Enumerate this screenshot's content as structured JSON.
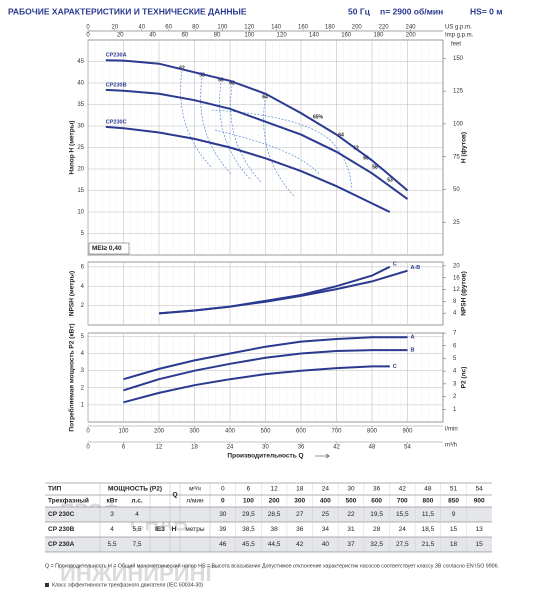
{
  "header": {
    "title": "РАБОЧИЕ ХАРАКТЕРИСТИКИ И ТЕХНИЧЕСКИЕ ДАННЫЕ",
    "frequency": "50 Гц",
    "speed": "n= 2900 об/мин",
    "suction": "HS= 0 м"
  },
  "x_axes": [
    {
      "unit": "US g.p.m.",
      "lim": [
        0,
        264.17
      ],
      "ticks": [
        0,
        20,
        40,
        60,
        80,
        100,
        120,
        140,
        160,
        180,
        200,
        220,
        240
      ]
    },
    {
      "unit": "Imp g.p.m.",
      "lim": [
        0,
        219.97
      ],
      "ticks": [
        0,
        20,
        40,
        60,
        80,
        100,
        120,
        140,
        160,
        180,
        200
      ]
    },
    {
      "unit": "l/min",
      "lim": [
        0,
        1000
      ],
      "ticks": [
        0,
        100,
        200,
        300,
        400,
        500,
        600,
        700,
        800,
        900
      ]
    },
    {
      "unit": "m³/h",
      "lim": [
        0,
        60
      ],
      "ticks": [
        0,
        6,
        12,
        18,
        24,
        30,
        36,
        42,
        48,
        54
      ]
    }
  ],
  "x_title": "Производительность Q",
  "chart_data": [
    {
      "type": "line",
      "ylabel": "Напор H (метры)",
      "y2label": "H (футов)",
      "y2unit": "feet",
      "grid": true,
      "xlim": [
        0,
        1000
      ],
      "ylim": [
        0,
        50
      ],
      "yticks": [
        5,
        10,
        15,
        20,
        25,
        30,
        35,
        40,
        45
      ],
      "y2lim": [
        0,
        164
      ],
      "y2ticks": [
        25,
        50,
        75,
        100,
        125,
        150
      ],
      "annotations": [
        "62",
        "58",
        "60",
        "62",
        "64",
        "65%",
        "64",
        "62",
        "60",
        "58",
        "53"
      ],
      "note": "MEI≥ 0,40",
      "series": [
        {
          "name": "CP230A",
          "color": "#2b3990",
          "x": [
            50,
            100,
            200,
            300,
            400,
            500,
            600,
            700,
            800,
            850,
            900
          ],
          "values": [
            45.3,
            45.2,
            44.5,
            42.5,
            40.5,
            37.5,
            33,
            28,
            22,
            18.5,
            15
          ]
        },
        {
          "name": "CP230B",
          "color": "#2b3990",
          "x": [
            50,
            100,
            200,
            300,
            400,
            500,
            600,
            700,
            800,
            850,
            900
          ],
          "values": [
            38.4,
            38.2,
            37.5,
            36,
            34,
            31,
            28,
            24,
            19,
            16,
            13
          ]
        },
        {
          "name": "CP230C",
          "color": "#2b3990",
          "x": [
            50,
            100,
            200,
            300,
            400,
            500,
            600,
            700,
            800,
            850
          ],
          "values": [
            29.8,
            29.5,
            28.5,
            27,
            25,
            22.5,
            19.5,
            16,
            12,
            10
          ]
        }
      ]
    },
    {
      "type": "line",
      "ylabel": "NPSH (метры)",
      "y2label": "NPSH (футов)",
      "grid": true,
      "xlim": [
        0,
        1000
      ],
      "ylim": [
        0,
        6.5
      ],
      "yticks": [
        2,
        4,
        6
      ],
      "y2lim": [
        0,
        21.3
      ],
      "y2ticks": [
        4,
        8,
        12,
        16,
        20
      ],
      "series": [
        {
          "name": "A-B",
          "color": "#2b3990",
          "x": [
            200,
            300,
            400,
            500,
            600,
            700,
            800,
            900
          ],
          "values": [
            1.2,
            1.5,
            1.9,
            2.4,
            3.0,
            3.7,
            4.5,
            5.6
          ]
        },
        {
          "name": "C",
          "color": "#2b3990",
          "x": [
            200,
            300,
            400,
            500,
            600,
            700,
            800,
            850
          ],
          "values": [
            1.2,
            1.5,
            1.9,
            2.5,
            3.1,
            4.0,
            5.1,
            6.0
          ]
        }
      ]
    },
    {
      "type": "line",
      "ylabel": "Потребляемая мощность P2 (кВт)",
      "y2label": "P2 (лс)",
      "grid": true,
      "xlim": [
        0,
        1000
      ],
      "ylim": [
        0,
        5.2
      ],
      "yticks": [
        1,
        2,
        3,
        4,
        5
      ],
      "y2lim": [
        0,
        7
      ],
      "y2ticks": [
        1,
        2,
        3,
        4,
        5,
        6,
        7
      ],
      "series": [
        {
          "name": "A",
          "color": "#2b3990",
          "x": [
            100,
            200,
            300,
            400,
            500,
            600,
            700,
            800,
            900
          ],
          "values": [
            2.5,
            3.1,
            3.6,
            4.0,
            4.4,
            4.7,
            4.85,
            4.95,
            4.95
          ]
        },
        {
          "name": "B",
          "color": "#2b3990",
          "x": [
            100,
            200,
            300,
            400,
            500,
            600,
            700,
            800,
            900
          ],
          "values": [
            1.85,
            2.5,
            3.0,
            3.4,
            3.75,
            4.0,
            4.15,
            4.2,
            4.2
          ]
        },
        {
          "name": "C",
          "color": "#2b3990",
          "x": [
            100,
            200,
            300,
            400,
            500,
            600,
            700,
            800,
            850
          ],
          "values": [
            1.15,
            1.7,
            2.15,
            2.5,
            2.8,
            3.0,
            3.15,
            3.25,
            3.25
          ]
        }
      ]
    }
  ],
  "table": {
    "type_label": "ТИП",
    "phase_label": "Трехфазный",
    "power_label": "МОЩНОСТЬ (P2)",
    "kw_label": "кВт",
    "hp_label": "л.с.",
    "q_label": "Q",
    "m3h_label": "м³/ч",
    "lmin_label": "л/мин",
    "q_m3h": [
      0,
      6,
      12,
      18,
      24,
      30,
      36,
      42,
      48,
      51,
      54
    ],
    "q_lmin": [
      0,
      100,
      200,
      300,
      400,
      500,
      600,
      700,
      800,
      850,
      900
    ],
    "ie": "IE3",
    "h_label": "H",
    "h_unit": "метры",
    "rows": [
      {
        "type": "CP 230C",
        "kw": "3",
        "hp": "4",
        "h": [
          "30",
          "29,5",
          "28,5",
          "27",
          "25",
          "22",
          "19,5",
          "15,5",
          "11,5",
          "9"
        ]
      },
      {
        "type": "CP 230B",
        "kw": "4",
        "hp": "5,5",
        "h": [
          "39",
          "38,5",
          "38",
          "36",
          "34",
          "31",
          "28",
          "24",
          "18,5",
          "15",
          "13"
        ]
      },
      {
        "type": "CP 230A",
        "kw": "5,5",
        "hp": "7,5",
        "h": [
          "46",
          "45,5",
          "44,5",
          "42",
          "40",
          "37",
          "32,5",
          "27,5",
          "21,5",
          "18",
          "15"
        ]
      }
    ]
  },
  "footnotes": [
    "Q = Производительность  H = Общий манометрический напор  HS = Высота всасывания   Допустимое отклонение характеристик насосов соответствует классу 3B согласно EN ISO 9906.",
    "Класс эффективности трехфазного двигателя (IEC 60034-30)"
  ],
  "watermark": [
    "ПРОФ",
    "СНАБ",
    "ИНЖИНИРИНГ"
  ]
}
